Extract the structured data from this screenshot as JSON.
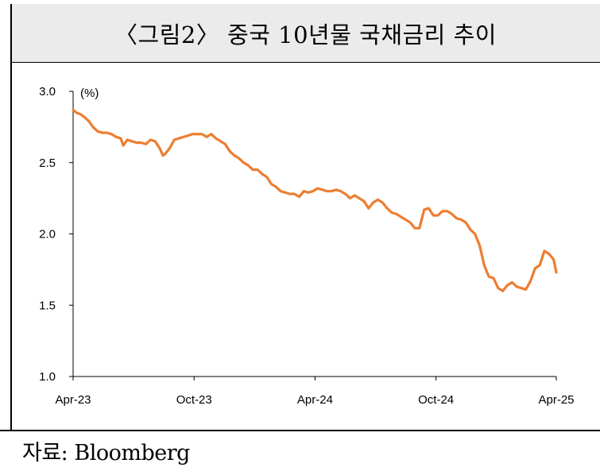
{
  "header": {
    "title": "〈그림2〉 중국 10년물 국채금리 추이"
  },
  "footer": {
    "source": "자료: Bloomberg"
  },
  "chart_data": {
    "type": "line",
    "title": "〈그림2〉 중국 10년물 국채금리 추이",
    "ylabel": "(%)",
    "xlabel": "",
    "ylim": [
      1.0,
      3.0
    ],
    "yticks": [
      "3.0",
      "2.5",
      "2.0",
      "1.5",
      "1.0"
    ],
    "xticks": [
      "Apr-23",
      "Oct-23",
      "Apr-24",
      "Oct-24",
      "Apr-25"
    ],
    "grid": false,
    "legend": "none",
    "line_color": "#ed7d31",
    "series": [
      {
        "x": [
          "2023-04-01",
          "2023-04-06",
          "2023-04-12",
          "2023-04-18",
          "2023-04-25",
          "2023-05-01",
          "2023-05-08",
          "2023-05-15",
          "2023-05-22",
          "2023-05-29",
          "2023-06-05",
          "2023-06-12",
          "2023-06-16",
          "2023-06-22",
          "2023-06-29",
          "2023-07-06",
          "2023-07-13",
          "2023-07-20",
          "2023-07-27",
          "2023-08-03",
          "2023-08-10",
          "2023-08-15",
          "2023-08-18",
          "2023-08-25",
          "2023-09-01",
          "2023-09-08",
          "2023-09-15",
          "2023-09-22",
          "2023-09-29",
          "2023-10-06",
          "2023-10-13",
          "2023-10-20",
          "2023-10-27",
          "2023-11-03",
          "2023-11-10",
          "2023-11-17",
          "2023-11-24",
          "2023-12-01",
          "2023-12-08",
          "2023-12-15",
          "2023-12-22",
          "2023-12-29",
          "2024-01-05",
          "2024-01-12",
          "2024-01-19",
          "2024-01-26",
          "2024-02-02",
          "2024-02-09",
          "2024-02-16",
          "2024-02-23",
          "2024-03-01",
          "2024-03-08",
          "2024-03-15",
          "2024-03-22",
          "2024-03-29",
          "2024-04-05",
          "2024-04-12",
          "2024-04-19",
          "2024-04-26",
          "2024-05-03",
          "2024-05-10",
          "2024-05-17",
          "2024-05-24",
          "2024-05-31",
          "2024-06-07",
          "2024-06-14",
          "2024-06-21",
          "2024-06-28",
          "2024-07-05",
          "2024-07-12",
          "2024-07-19",
          "2024-07-26",
          "2024-08-02",
          "2024-08-09",
          "2024-08-16",
          "2024-08-23",
          "2024-08-30",
          "2024-09-06",
          "2024-09-13",
          "2024-09-20",
          "2024-09-27",
          "2024-10-04",
          "2024-10-11",
          "2024-10-18",
          "2024-10-25",
          "2024-11-01",
          "2024-11-08",
          "2024-11-15",
          "2024-11-22",
          "2024-11-29",
          "2024-12-06",
          "2024-12-13",
          "2024-12-20",
          "2024-12-27",
          "2025-01-03",
          "2025-01-10",
          "2025-01-17",
          "2025-01-24",
          "2025-01-31",
          "2025-02-07",
          "2025-02-14",
          "2025-02-21",
          "2025-02-28",
          "2025-03-07",
          "2025-03-14",
          "2025-03-21",
          "2025-03-28",
          "2025-04-01"
        ],
        "values": [
          2.87,
          2.85,
          2.84,
          2.82,
          2.79,
          2.75,
          2.72,
          2.71,
          2.71,
          2.7,
          2.68,
          2.67,
          2.62,
          2.66,
          2.65,
          2.64,
          2.64,
          2.63,
          2.66,
          2.65,
          2.6,
          2.55,
          2.56,
          2.6,
          2.66,
          2.67,
          2.68,
          2.69,
          2.7,
          2.7,
          2.7,
          2.68,
          2.7,
          2.67,
          2.65,
          2.63,
          2.58,
          2.55,
          2.53,
          2.5,
          2.48,
          2.45,
          2.45,
          2.42,
          2.4,
          2.35,
          2.33,
          2.3,
          2.29,
          2.28,
          2.28,
          2.26,
          2.3,
          2.29,
          2.3,
          2.32,
          2.31,
          2.3,
          2.3,
          2.31,
          2.3,
          2.28,
          2.25,
          2.27,
          2.25,
          2.23,
          2.18,
          2.22,
          2.24,
          2.22,
          2.18,
          2.15,
          2.14,
          2.12,
          2.1,
          2.08,
          2.04,
          2.04,
          2.17,
          2.18,
          2.13,
          2.13,
          2.16,
          2.16,
          2.14,
          2.11,
          2.1,
          2.08,
          2.03,
          2.0,
          1.92,
          1.78,
          1.7,
          1.69,
          1.62,
          1.6,
          1.64,
          1.66,
          1.63,
          1.62,
          1.61,
          1.67,
          1.76,
          1.78,
          1.88,
          1.86,
          1.82,
          1.73
        ]
      }
    ]
  }
}
